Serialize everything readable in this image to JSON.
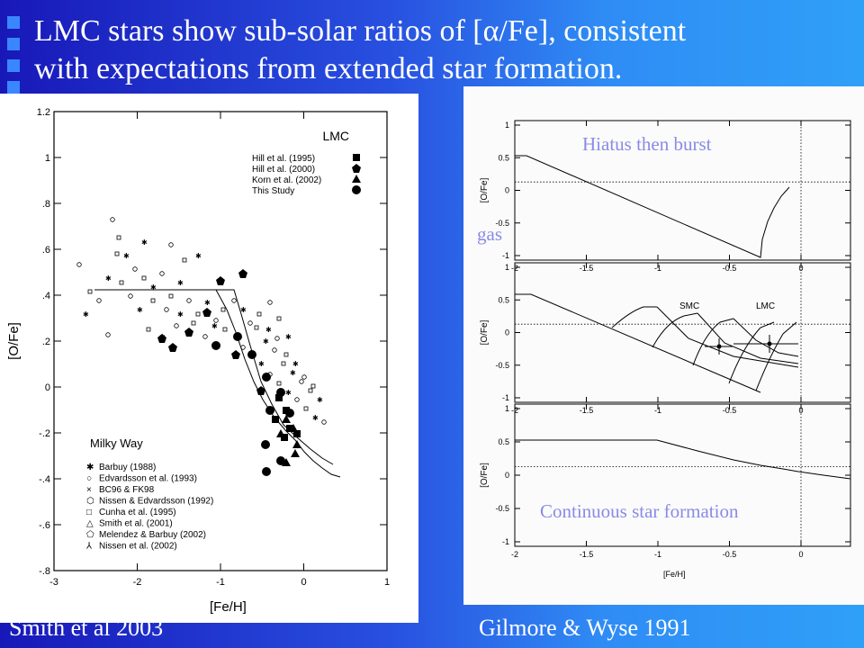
{
  "slide": {
    "title_lines": [
      "LMC stars show sub-solar ratios of [α/Fe], consistent",
      "with expectations from extended star formation."
    ],
    "caption_left": "Smith et al 2003",
    "caption_right": "Gilmore & Wyse 1991"
  },
  "left_plot": {
    "x_label": "[Fe/H]",
    "y_label": "[O/Fe]",
    "x_ticks": [
      "-3",
      "-2",
      "-1",
      "0",
      "1"
    ],
    "y_ticks": [
      "1.2",
      "1",
      ".8",
      ".6",
      ".4",
      ".2",
      "0",
      "-.2",
      "-.4",
      "-.6",
      "-.8"
    ],
    "lmc_legend_title": "LMC",
    "lmc_legend": [
      "Hill et al. (1995)",
      "Hill et al. (2000)",
      "Korn et al. (2002)",
      "This Study"
    ],
    "mw_legend_title": "Milky Way",
    "mw_legend": [
      "Barbuy (1988)",
      "Edvardsson et al. (1993)",
      "BC96 & FK98",
      "Nissen & Edvardsson (1992)",
      "Cunha et al. (1995)",
      "Smith et al. (2001)",
      "Melendez & Barbuy (2002)",
      "Nissen et al. (2002)"
    ]
  },
  "right_plot": {
    "x_label": "[Fe/H]",
    "y_label": "[O/Fe]",
    "x_ticks": [
      "-2",
      "-1.5",
      "-1",
      "-0.5",
      "0"
    ],
    "y_ticks": [
      "1",
      "0.5",
      "0",
      "-0.5",
      "-1"
    ],
    "label_smc": "SMC",
    "label_lmc": "LMC",
    "overlay_top": "Hiatus then burst",
    "overlay_gas": "gas",
    "overlay_bottom": "Continuous star formation"
  }
}
